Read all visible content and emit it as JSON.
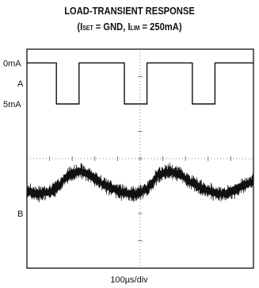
{
  "title_line1": "LOAD-TRANSIENT RESPONSE",
  "title_line2_pre": "(I",
  "title_line2_sub1": "SET",
  "title_line2_mid": " = GND, I",
  "title_line2_sub2": "LIM",
  "title_line2_post": " = 250mA)",
  "colors": {
    "trace": "#111111",
    "grid": "#666666",
    "background": "#ffffff"
  },
  "chart_data": {
    "type": "line",
    "title": "LOAD-TRANSIENT RESPONSE (ISET = GND, ILIM = 250mA)",
    "xlabel": "100µs/div",
    "x_divisions": 10,
    "y_divisions": 8,
    "channel_labels": [
      "0mA",
      "A",
      "5mA",
      "B"
    ],
    "series": [
      {
        "name": "A",
        "description_units": "mA",
        "levels": [
          0,
          5
        ],
        "x_div": [
          0,
          1.3,
          1.3,
          2.3,
          2.3,
          4.3,
          4.3,
          5.3,
          5.3,
          7.3,
          7.3,
          8.3,
          8.3,
          10
        ],
        "values": [
          0,
          0,
          5,
          5,
          0,
          0,
          5,
          5,
          0,
          0,
          5,
          5,
          0,
          0
        ]
      },
      {
        "name": "B",
        "x_div": [
          0,
          0.5,
          1.0,
          1.3,
          1.8,
          2.3,
          2.8,
          3.3,
          3.8,
          4.3,
          4.8,
          5.3,
          5.8,
          6.3,
          6.8,
          7.3,
          7.8,
          8.3,
          8.8,
          9.3,
          10
        ],
        "values_div": [
          5.2,
          5.3,
          5.2,
          5.1,
          4.6,
          4.45,
          4.6,
          4.9,
          5.1,
          5.25,
          5.3,
          5.1,
          4.6,
          4.45,
          4.6,
          4.9,
          5.1,
          5.25,
          5.3,
          5.1,
          4.8
        ]
      }
    ]
  }
}
